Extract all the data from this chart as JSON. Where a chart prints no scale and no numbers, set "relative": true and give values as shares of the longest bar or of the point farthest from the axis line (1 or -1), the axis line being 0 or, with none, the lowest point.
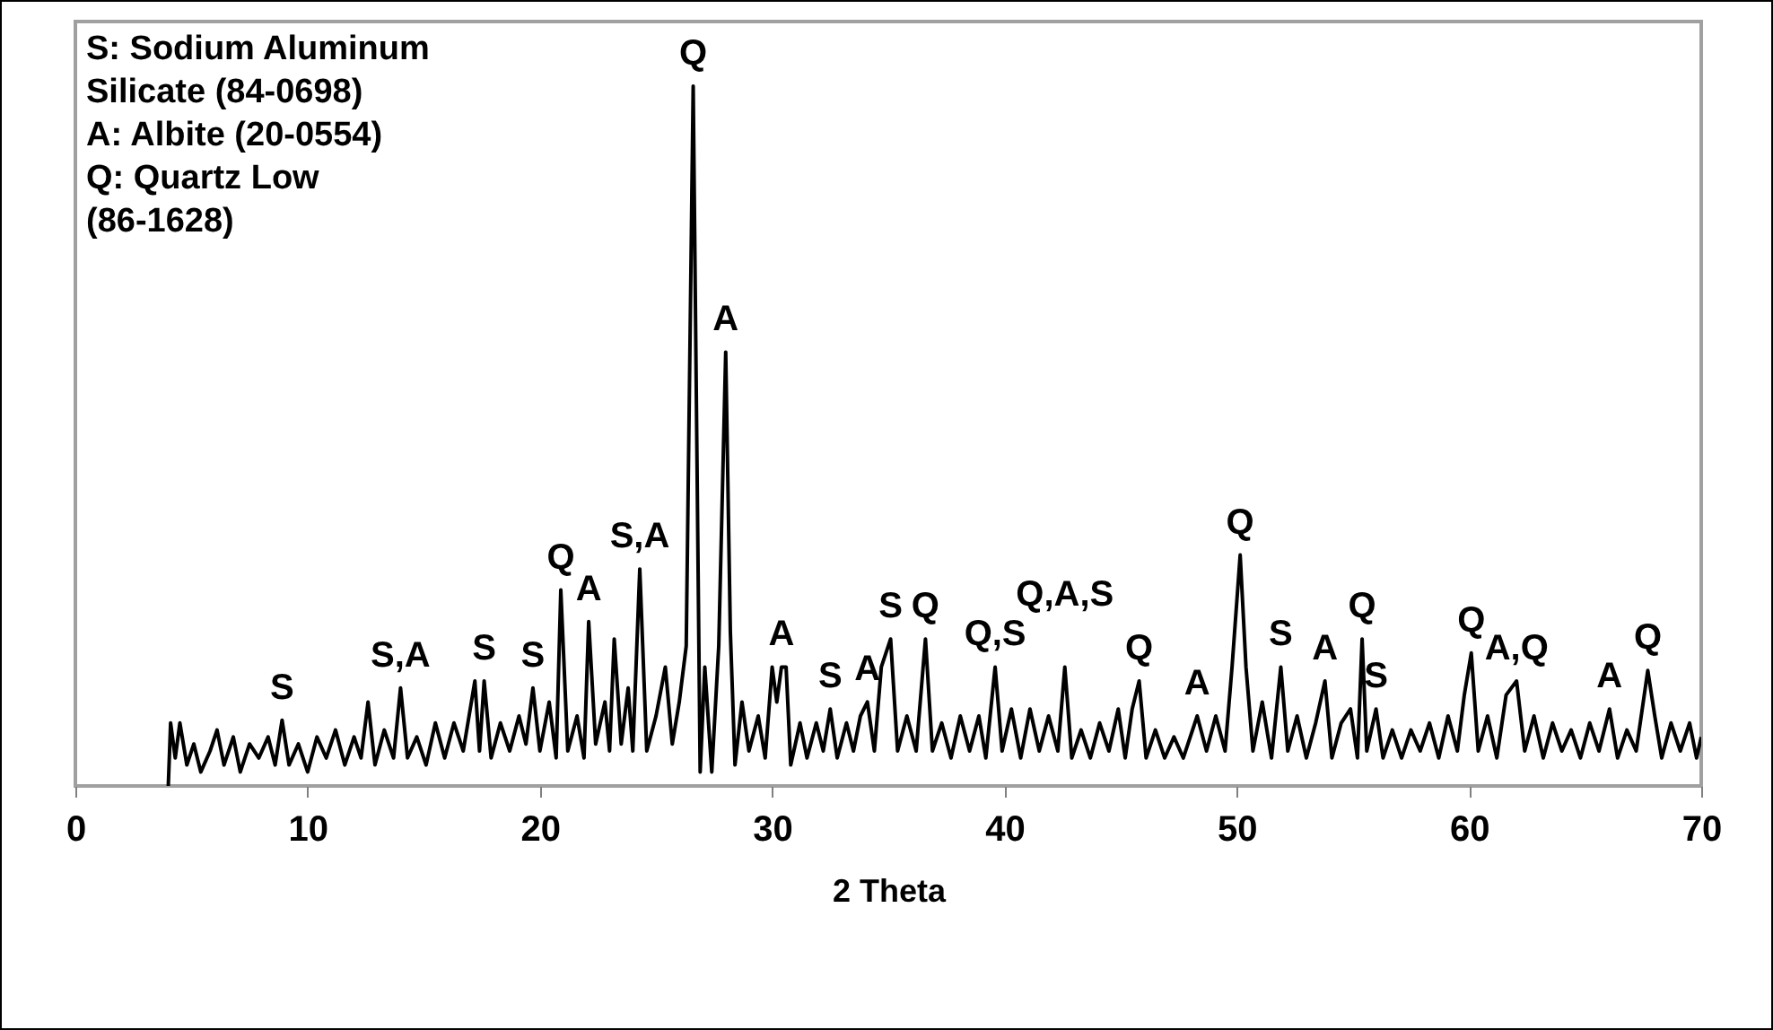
{
  "chart_data": {
    "type": "line",
    "relative": true,
    "xlabel": "2 Theta",
    "xlim": [
      0,
      70
    ],
    "xticks": [
      0,
      10,
      20,
      30,
      40,
      50,
      60,
      70
    ],
    "grid": false,
    "series": [
      {
        "color": "#000000",
        "x": [
          4.0,
          4.1,
          4.3,
          4.5,
          4.8,
          5.1,
          5.4,
          5.8,
          6.1,
          6.4,
          6.8,
          7.1,
          7.5,
          7.9,
          8.3,
          8.6,
          8.9,
          9.2,
          9.6,
          10.0,
          10.4,
          10.8,
          11.2,
          11.6,
          12.0,
          12.3,
          12.6,
          12.9,
          13.3,
          13.7,
          14.0,
          14.3,
          14.7,
          15.1,
          15.5,
          15.9,
          16.3,
          16.7,
          17.2,
          17.4,
          17.6,
          17.9,
          18.3,
          18.7,
          19.1,
          19.4,
          19.7,
          20.0,
          20.4,
          20.7,
          20.9,
          21.2,
          21.6,
          21.9,
          22.1,
          22.4,
          22.8,
          23.0,
          23.2,
          23.5,
          23.8,
          24.0,
          24.3,
          24.6,
          25.0,
          25.4,
          25.7,
          26.0,
          26.3,
          26.6,
          26.9,
          27.1,
          27.4,
          27.7,
          28.0,
          28.2,
          28.4,
          28.7,
          29.0,
          29.4,
          29.7,
          30.0,
          30.2,
          30.4,
          30.6,
          30.8,
          31.2,
          31.5,
          31.9,
          32.2,
          32.5,
          32.8,
          33.2,
          33.5,
          33.8,
          34.1,
          34.4,
          34.7,
          35.1,
          35.4,
          35.8,
          36.2,
          36.6,
          36.9,
          37.3,
          37.7,
          38.1,
          38.5,
          38.9,
          39.2,
          39.6,
          39.9,
          40.3,
          40.7,
          41.1,
          41.5,
          41.9,
          42.3,
          42.6,
          42.9,
          43.3,
          43.7,
          44.1,
          44.5,
          44.9,
          45.2,
          45.5,
          45.8,
          46.1,
          46.5,
          46.9,
          47.3,
          47.7,
          48.3,
          48.7,
          49.1,
          49.5,
          49.8,
          50.15,
          50.4,
          50.7,
          51.1,
          51.5,
          51.9,
          52.2,
          52.6,
          53.0,
          53.4,
          53.8,
          54.1,
          54.5,
          54.9,
          55.2,
          55.4,
          55.6,
          56.0,
          56.3,
          56.7,
          57.1,
          57.5,
          57.9,
          58.3,
          58.7,
          59.1,
          59.5,
          59.8,
          60.1,
          60.4,
          60.8,
          61.2,
          61.6,
          62.05,
          62.4,
          62.8,
          63.2,
          63.6,
          64.0,
          64.4,
          64.8,
          65.2,
          65.6,
          66.05,
          66.4,
          66.8,
          67.2,
          67.7,
          68.0,
          68.3,
          68.7,
          69.1,
          69.5,
          69.8,
          70.0
        ],
        "values": [
          0,
          0.09,
          0.04,
          0.09,
          0.03,
          0.06,
          0.02,
          0.05,
          0.08,
          0.03,
          0.07,
          0.02,
          0.06,
          0.04,
          0.07,
          0.03,
          0.094,
          0.03,
          0.06,
          0.02,
          0.07,
          0.04,
          0.08,
          0.03,
          0.07,
          0.04,
          0.12,
          0.03,
          0.08,
          0.04,
          0.14,
          0.04,
          0.07,
          0.03,
          0.09,
          0.04,
          0.09,
          0.05,
          0.15,
          0.05,
          0.15,
          0.04,
          0.09,
          0.05,
          0.1,
          0.06,
          0.14,
          0.05,
          0.12,
          0.04,
          0.28,
          0.05,
          0.1,
          0.04,
          0.235,
          0.06,
          0.12,
          0.05,
          0.21,
          0.06,
          0.14,
          0.05,
          0.31,
          0.05,
          0.1,
          0.17,
          0.06,
          0.12,
          0.2,
          1.0,
          0.02,
          0.17,
          0.02,
          0.2,
          0.62,
          0.22,
          0.03,
          0.12,
          0.05,
          0.1,
          0.04,
          0.17,
          0.12,
          0.17,
          0.17,
          0.03,
          0.09,
          0.04,
          0.09,
          0.05,
          0.11,
          0.04,
          0.09,
          0.05,
          0.1,
          0.12,
          0.05,
          0.17,
          0.21,
          0.05,
          0.1,
          0.05,
          0.21,
          0.05,
          0.09,
          0.04,
          0.1,
          0.05,
          0.1,
          0.04,
          0.17,
          0.05,
          0.11,
          0.04,
          0.11,
          0.05,
          0.1,
          0.05,
          0.17,
          0.04,
          0.08,
          0.04,
          0.09,
          0.05,
          0.11,
          0.04,
          0.11,
          0.15,
          0.04,
          0.08,
          0.04,
          0.07,
          0.04,
          0.1,
          0.05,
          0.1,
          0.05,
          0.17,
          0.33,
          0.17,
          0.05,
          0.12,
          0.04,
          0.17,
          0.05,
          0.1,
          0.04,
          0.09,
          0.15,
          0.04,
          0.09,
          0.11,
          0.04,
          0.21,
          0.05,
          0.11,
          0.04,
          0.08,
          0.04,
          0.08,
          0.05,
          0.09,
          0.04,
          0.1,
          0.05,
          0.13,
          0.19,
          0.05,
          0.1,
          0.04,
          0.13,
          0.15,
          0.05,
          0.1,
          0.04,
          0.09,
          0.05,
          0.08,
          0.04,
          0.09,
          0.05,
          0.11,
          0.04,
          0.08,
          0.05,
          0.165,
          0.1,
          0.04,
          0.09,
          0.05,
          0.09,
          0.04,
          0.07
        ]
      }
    ],
    "annotations": [
      "S: Sodium Aluminum\nSilicate (84-0698)",
      "A: Albite (20-0554)",
      "Q: Quartz Low\n(86-1628)",
      {
        "text": "S",
        "x": 8.9,
        "y": 0.094
      },
      {
        "text": "S,A",
        "x": 14.0,
        "y": 0.14
      },
      {
        "text": "S",
        "x": 17.6,
        "y": 0.15
      },
      {
        "text": "S",
        "x": 19.7,
        "y": 0.14
      },
      {
        "text": "Q",
        "x": 20.9,
        "y": 0.28
      },
      {
        "text": "A",
        "x": 22.1,
        "y": 0.235
      },
      {
        "text": "S,A",
        "x": 24.3,
        "y": 0.31
      },
      {
        "text": "Q",
        "x": 26.6,
        "y": 1.0
      },
      {
        "text": "A",
        "x": 28.0,
        "y": 0.62
      },
      {
        "text": "A",
        "x": 30.4,
        "y": 0.17
      },
      {
        "text": "S",
        "x": 32.5,
        "y": 0.11
      },
      {
        "text": "A",
        "x": 34.1,
        "y": 0.12
      },
      {
        "text": "S",
        "x": 35.1,
        "y": 0.21
      },
      {
        "text": "Q",
        "x": 36.6,
        "y": 0.21
      },
      {
        "text": "Q,S",
        "x": 39.6,
        "y": 0.17
      },
      {
        "text": "Q,A,S",
        "x": 42.6,
        "y": 0.17
      },
      {
        "text": "Q",
        "x": 45.8,
        "y": 0.15
      },
      {
        "text": "A",
        "x": 48.3,
        "y": 0.1
      },
      {
        "text": "Q",
        "x": 50.15,
        "y": 0.33
      },
      {
        "text": "S",
        "x": 51.9,
        "y": 0.17
      },
      {
        "text": "A",
        "x": 53.8,
        "y": 0.15
      },
      {
        "text": "Q",
        "x": 55.4,
        "y": 0.21
      },
      {
        "text": "S",
        "x": 56.0,
        "y": 0.11
      },
      {
        "text": "Q",
        "x": 60.1,
        "y": 0.19
      },
      {
        "text": "A,Q",
        "x": 62.05,
        "y": 0.15
      },
      {
        "text": "A",
        "x": 66.05,
        "y": 0.11
      },
      {
        "text": "Q",
        "x": 67.7,
        "y": 0.165
      }
    ]
  }
}
